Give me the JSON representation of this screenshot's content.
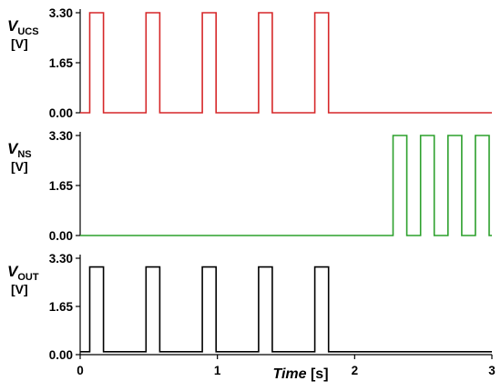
{
  "chart_data": [
    {
      "type": "line",
      "ylabel": {
        "symbol": "V",
        "subscript": "UCS",
        "unit": "[V]"
      },
      "yticks": [
        "0.00",
        "1.65",
        "3.30"
      ],
      "ylim": [
        0,
        3.3
      ],
      "xlim": [
        0,
        3
      ],
      "color": "#d62728",
      "series": [
        {
          "x": [
            0,
            0.07,
            0.07,
            0.17,
            0.17,
            0.48,
            0.48,
            0.58,
            0.58,
            0.89,
            0.89,
            0.99,
            0.99,
            1.3,
            1.3,
            1.4,
            1.4,
            1.71,
            1.71,
            1.81,
            1.81,
            3.0
          ],
          "y": [
            0,
            0,
            3.3,
            3.3,
            0,
            0,
            3.3,
            3.3,
            0,
            0,
            3.3,
            3.3,
            0,
            0,
            3.3,
            3.3,
            0,
            0,
            3.3,
            3.3,
            0,
            0
          ]
        }
      ]
    },
    {
      "type": "line",
      "ylabel": {
        "symbol": "V",
        "subscript": "NS",
        "unit": "[V]"
      },
      "yticks": [
        "0.00",
        "1.65",
        "3.30"
      ],
      "ylim": [
        0,
        3.3
      ],
      "xlim": [
        0,
        3
      ],
      "color": "#2ca02c",
      "series": [
        {
          "x": [
            0,
            2.28,
            2.28,
            2.38,
            2.38,
            2.48,
            2.48,
            2.58,
            2.58,
            2.68,
            2.68,
            2.78,
            2.78,
            2.88,
            2.88,
            2.98,
            2.98,
            3.0
          ],
          "y": [
            0,
            0,
            3.3,
            3.3,
            0,
            0,
            3.3,
            3.3,
            0,
            0,
            3.3,
            3.3,
            0,
            0,
            3.3,
            3.3,
            0,
            0
          ]
        }
      ]
    },
    {
      "type": "line",
      "ylabel": {
        "symbol": "V",
        "subscript": "OUT",
        "unit": "[V]"
      },
      "yticks": [
        "0.00",
        "1.65",
        "3.30"
      ],
      "ylim": [
        0,
        3.3
      ],
      "xlim": [
        0,
        3
      ],
      "xlabel": {
        "main": "Time",
        "unit": "[s]"
      },
      "xticks": [
        "0",
        "1",
        "2",
        "3"
      ],
      "color": "#000000",
      "series": [
        {
          "x": [
            0,
            0.07,
            0.07,
            0.17,
            0.17,
            0.48,
            0.48,
            0.58,
            0.58,
            0.89,
            0.89,
            0.99,
            0.99,
            1.3,
            1.3,
            1.4,
            1.4,
            1.71,
            1.71,
            1.81,
            1.81,
            3.0
          ],
          "y": [
            0.1,
            0.1,
            3.0,
            3.0,
            0.1,
            0.1,
            3.0,
            3.0,
            0.1,
            0.1,
            3.0,
            3.0,
            0.1,
            0.1,
            3.0,
            3.0,
            0.1,
            0.1,
            3.0,
            3.0,
            0.1,
            0.1
          ]
        }
      ]
    }
  ]
}
